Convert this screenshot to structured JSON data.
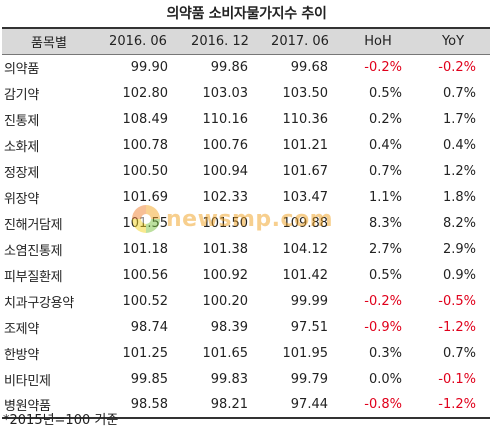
{
  "title": "의약품 소비자물가지수 추이",
  "headers": [
    "품목별",
    "2016. 06",
    "2016. 12",
    "2017. 06",
    "HoH",
    "YoY"
  ],
  "rows": [
    {
      "name": "의약품",
      "v1": "99.90",
      "v2": "99.86",
      "v3": "99.68",
      "hoh": "-0.2%",
      "yoy": "-0.2%"
    },
    {
      "name": "감기약",
      "v1": "102.80",
      "v2": "103.03",
      "v3": "103.50",
      "hoh": "0.5%",
      "yoy": "0.7%"
    },
    {
      "name": "진통제",
      "v1": "108.49",
      "v2": "110.16",
      "v3": "110.36",
      "hoh": "0.2%",
      "yoy": "1.7%"
    },
    {
      "name": "소화제",
      "v1": "100.78",
      "v2": "100.76",
      "v3": "101.21",
      "hoh": "0.4%",
      "yoy": "0.4%"
    },
    {
      "name": "정장제",
      "v1": "100.50",
      "v2": "100.94",
      "v3": "101.67",
      "hoh": "0.7%",
      "yoy": "1.2%"
    },
    {
      "name": "위장약",
      "v1": "101.69",
      "v2": "102.33",
      "v3": "103.47",
      "hoh": "1.1%",
      "yoy": "1.8%"
    },
    {
      "name": "진해거담제",
      "v1": "101.55",
      "v2": "101.50",
      "v3": "109.88",
      "hoh": "8.3%",
      "yoy": "8.2%"
    },
    {
      "name": "소염진통제",
      "v1": "101.18",
      "v2": "101.38",
      "v3": "104.12",
      "hoh": "2.7%",
      "yoy": "2.9%"
    },
    {
      "name": "피부질환제",
      "v1": "100.56",
      "v2": "100.92",
      "v3": "101.42",
      "hoh": "0.5%",
      "yoy": "0.9%"
    },
    {
      "name": "치과구강용약",
      "v1": "100.52",
      "v2": "100.20",
      "v3": "99.99",
      "hoh": "-0.2%",
      "yoy": "-0.5%"
    },
    {
      "name": "조제약",
      "v1": "98.74",
      "v2": "98.39",
      "v3": "97.51",
      "hoh": "-0.9%",
      "yoy": "-1.2%"
    },
    {
      "name": "한방약",
      "v1": "101.25",
      "v2": "101.65",
      "v3": "101.95",
      "hoh": "0.3%",
      "yoy": "0.7%"
    },
    {
      "name": "비타민제",
      "v1": "99.85",
      "v2": "99.83",
      "v3": "99.79",
      "hoh": "0.0%",
      "yoy": "-0.1%"
    },
    {
      "name": "병원약품",
      "v1": "98.58",
      "v2": "98.21",
      "v3": "97.44",
      "hoh": "-0.8%",
      "yoy": "-1.2%"
    }
  ],
  "note": "*2015년=100 기준",
  "watermark_text": "newsmp.com",
  "colors": {
    "header_bg": "#d9d9d9",
    "negative": "#e0001b",
    "text": "#222222"
  }
}
